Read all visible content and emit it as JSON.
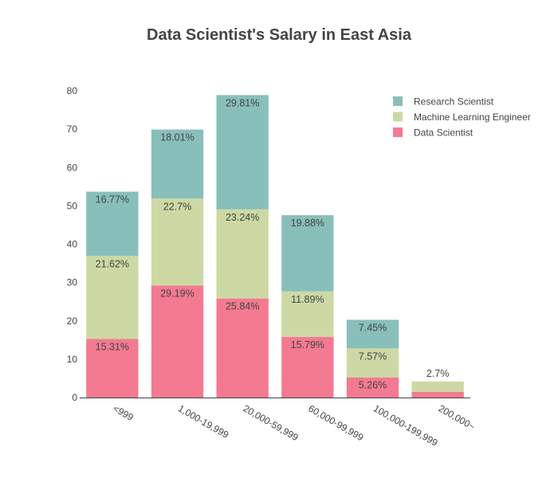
{
  "chart_data": {
    "type": "bar",
    "stacked": true,
    "title": "Data Scientist's Salary in East Asia",
    "xlabel": "",
    "ylabel": "",
    "ylim": [
      0,
      80
    ],
    "yticks": [
      0,
      10,
      20,
      30,
      40,
      50,
      60,
      70,
      80
    ],
    "grid": false,
    "legend_position": "top-right",
    "categories": [
      "<999",
      "1,000-19,999",
      "20,000-59,999",
      "60,000-99,999",
      "100,000-199,999",
      "200,000~"
    ],
    "series": [
      {
        "name": "Data Scientist",
        "color": "#f37a91",
        "values": [
          15.31,
          29.19,
          25.84,
          15.79,
          5.26,
          1.5
        ],
        "labels": [
          "15.31%",
          "29.19%",
          "25.84%",
          "15.79%",
          "5.26%",
          ""
        ]
      },
      {
        "name": "Machine Learning Engineer",
        "color": "#cdd9a4",
        "values": [
          21.62,
          22.7,
          23.24,
          11.89,
          7.57,
          2.7
        ],
        "labels": [
          "21.62%",
          "22.7%",
          "23.24%",
          "11.89%",
          "7.57%",
          "2.7%"
        ]
      },
      {
        "name": "Research Scientist",
        "color": "#88bfba",
        "values": [
          16.77,
          18.01,
          29.81,
          19.88,
          7.45,
          0
        ],
        "labels": [
          "16.77%",
          "18.01%",
          "29.81%",
          "19.88%",
          "7.45%",
          ""
        ]
      }
    ]
  }
}
